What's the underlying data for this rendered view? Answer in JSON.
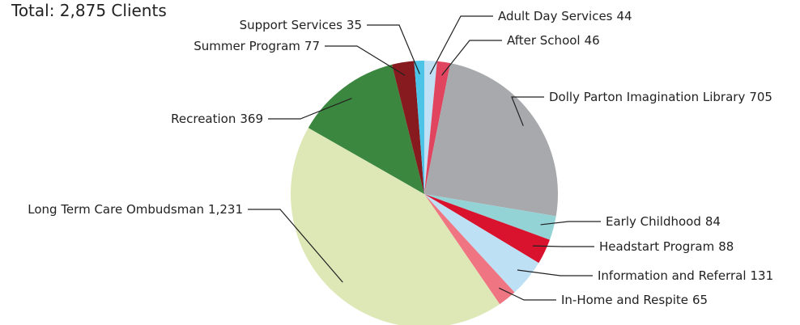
{
  "chart_data": {
    "type": "pie",
    "title": "Total: 2,875 Clients",
    "categories": [
      "Adult Day Services",
      "After School",
      "Dolly Parton Imagination Library",
      "Early Childhood",
      "Headstart Program",
      "Information and Referral",
      "In-Home and Respite",
      "Long Term Care Ombudsman",
      "Recreation",
      "Summer Program",
      "Support Services"
    ],
    "values": [
      44,
      46,
      705,
      84,
      88,
      131,
      65,
      1231,
      369,
      77,
      35
    ],
    "value_labels": [
      "44",
      "46",
      "705",
      "84",
      "88",
      "131",
      "65",
      "1,231",
      "369",
      "77",
      "35"
    ],
    "colors": [
      "#bfe0f5",
      "#e0445e",
      "#a7a9ac",
      "#93d3d6",
      "#d9122e",
      "#bde0f5",
      "#f07582",
      "#dde8b6",
      "#3c873f",
      "#861a1f",
      "#4bc4e8"
    ]
  }
}
